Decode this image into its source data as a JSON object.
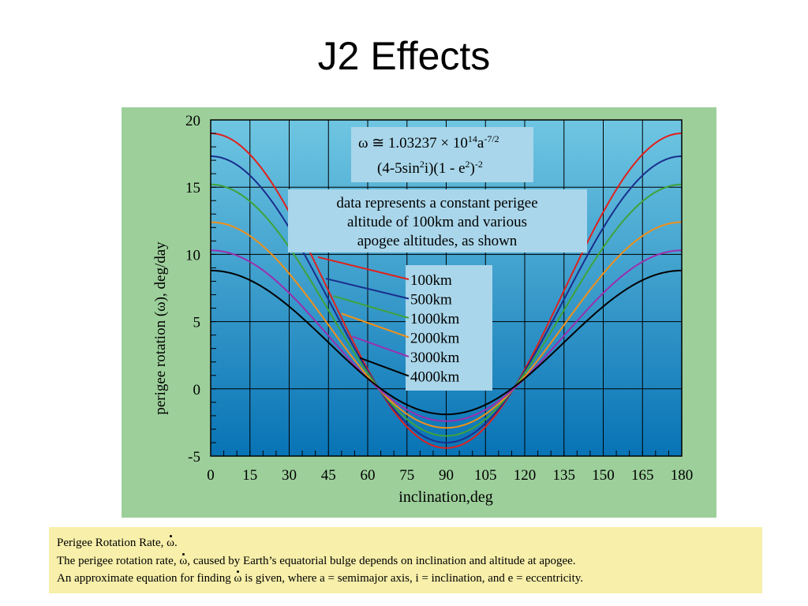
{
  "slide": {
    "title": "J2 Effects"
  },
  "chart_data": {
    "type": "line",
    "xlabel": "inclination,deg",
    "ylabel_prefix": "perigee rotation (",
    "ylabel_symbol": "ω",
    "ylabel_suffix": "), deg/day",
    "xlim": [
      0,
      180
    ],
    "ylim": [
      -5,
      20
    ],
    "x_ticks": [
      0,
      15,
      30,
      45,
      60,
      75,
      90,
      105,
      120,
      135,
      150,
      165,
      180
    ],
    "y_ticks": [
      -5,
      0,
      5,
      10,
      15,
      20
    ],
    "grid": true,
    "series": [
      {
        "name": "100km",
        "color": "#e0201c",
        "max": 19.0,
        "min": -4.4
      },
      {
        "name": "500km",
        "color": "#1a2e8c",
        "max": 17.3,
        "min": -4.0
      },
      {
        "name": "1000km",
        "color": "#3fa33a",
        "max": 15.2,
        "min": -3.5
      },
      {
        "name": "2000km",
        "color": "#f0901a",
        "max": 12.4,
        "min": -2.9
      },
      {
        "name": "3000km",
        "color": "#9b2fb0",
        "max": 10.3,
        "min": -2.4
      },
      {
        "name": "4000km",
        "color": "#000000",
        "max": 8.8,
        "min": -1.9
      }
    ],
    "equation": {
      "line1_a": "ω ≅ 1.03237 × 10",
      "line1_sup1": "14",
      "line1_b": "a",
      "line1_sup2": "-7/2",
      "line2_a": "(4-5sin",
      "line2_sup1": "2",
      "line2_b": "i)(1 - e",
      "line2_sup2": "2",
      "line2_c": ")",
      "line2_sup3": "-2"
    },
    "annotation": [
      "data represents a constant perigee",
      "altitude of 100km and various",
      "apogee altitudes, as shown"
    ]
  },
  "caption": {
    "line1_pre": "Perigee Rotation Rate, ",
    "line1_sym": "ω",
    "line1_post": ".",
    "line2_pre": "The perigee rotation rate, ",
    "line2_sym": "ω",
    "line2_post": ", caused by Earth’s equatorial bulge depends on inclination and altitude at apogee.",
    "line3_pre": "An approximate equation for finding  ",
    "line3_sym": "ω",
    "line3_post": " is given, where a = semimajor axis, i = inclination, and e = eccentricity."
  }
}
